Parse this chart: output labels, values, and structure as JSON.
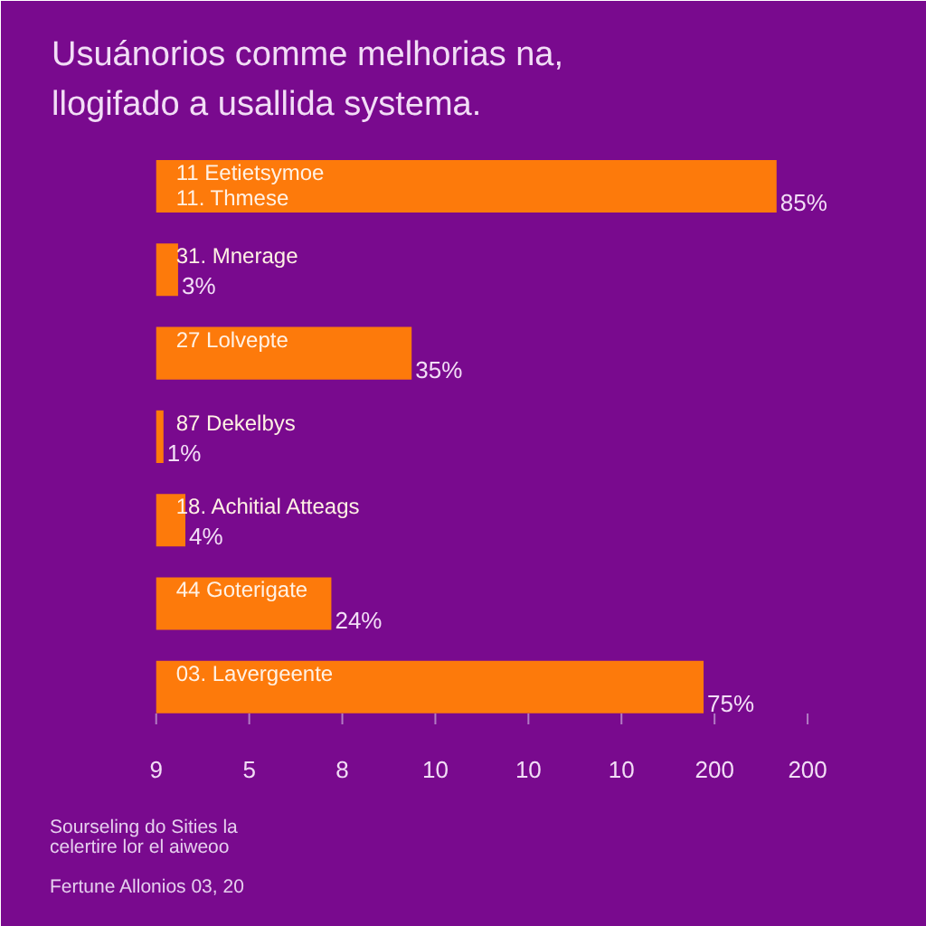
{
  "chart_data": {
    "type": "bar",
    "orientation": "horizontal",
    "title": "Usuánorios comme melhorias na,\nllogifado a usallida systema.",
    "categories": [
      "11 Eetietsymoe\n11. Thmese",
      "31. Mnerage",
      "27 Lolvepte",
      "87 Dekelbys",
      "18. Achitial Atteags",
      "44 Goterigate",
      "03. Lavergeente"
    ],
    "values": [
      85,
      3,
      35,
      1,
      4,
      24,
      75
    ],
    "value_labels": [
      "85%",
      "3%",
      "35%",
      "1%",
      "4%",
      "24%",
      "75%"
    ],
    "color": "#fd7a0b",
    "annotations": [
      "9",
      "5",
      "8",
      "10",
      "10",
      "10",
      "200",
      "200",
      "Sourseling do Sities la",
      "celertire lor el aiweoo",
      "Fertune Allonios 03, 20"
    ]
  }
}
